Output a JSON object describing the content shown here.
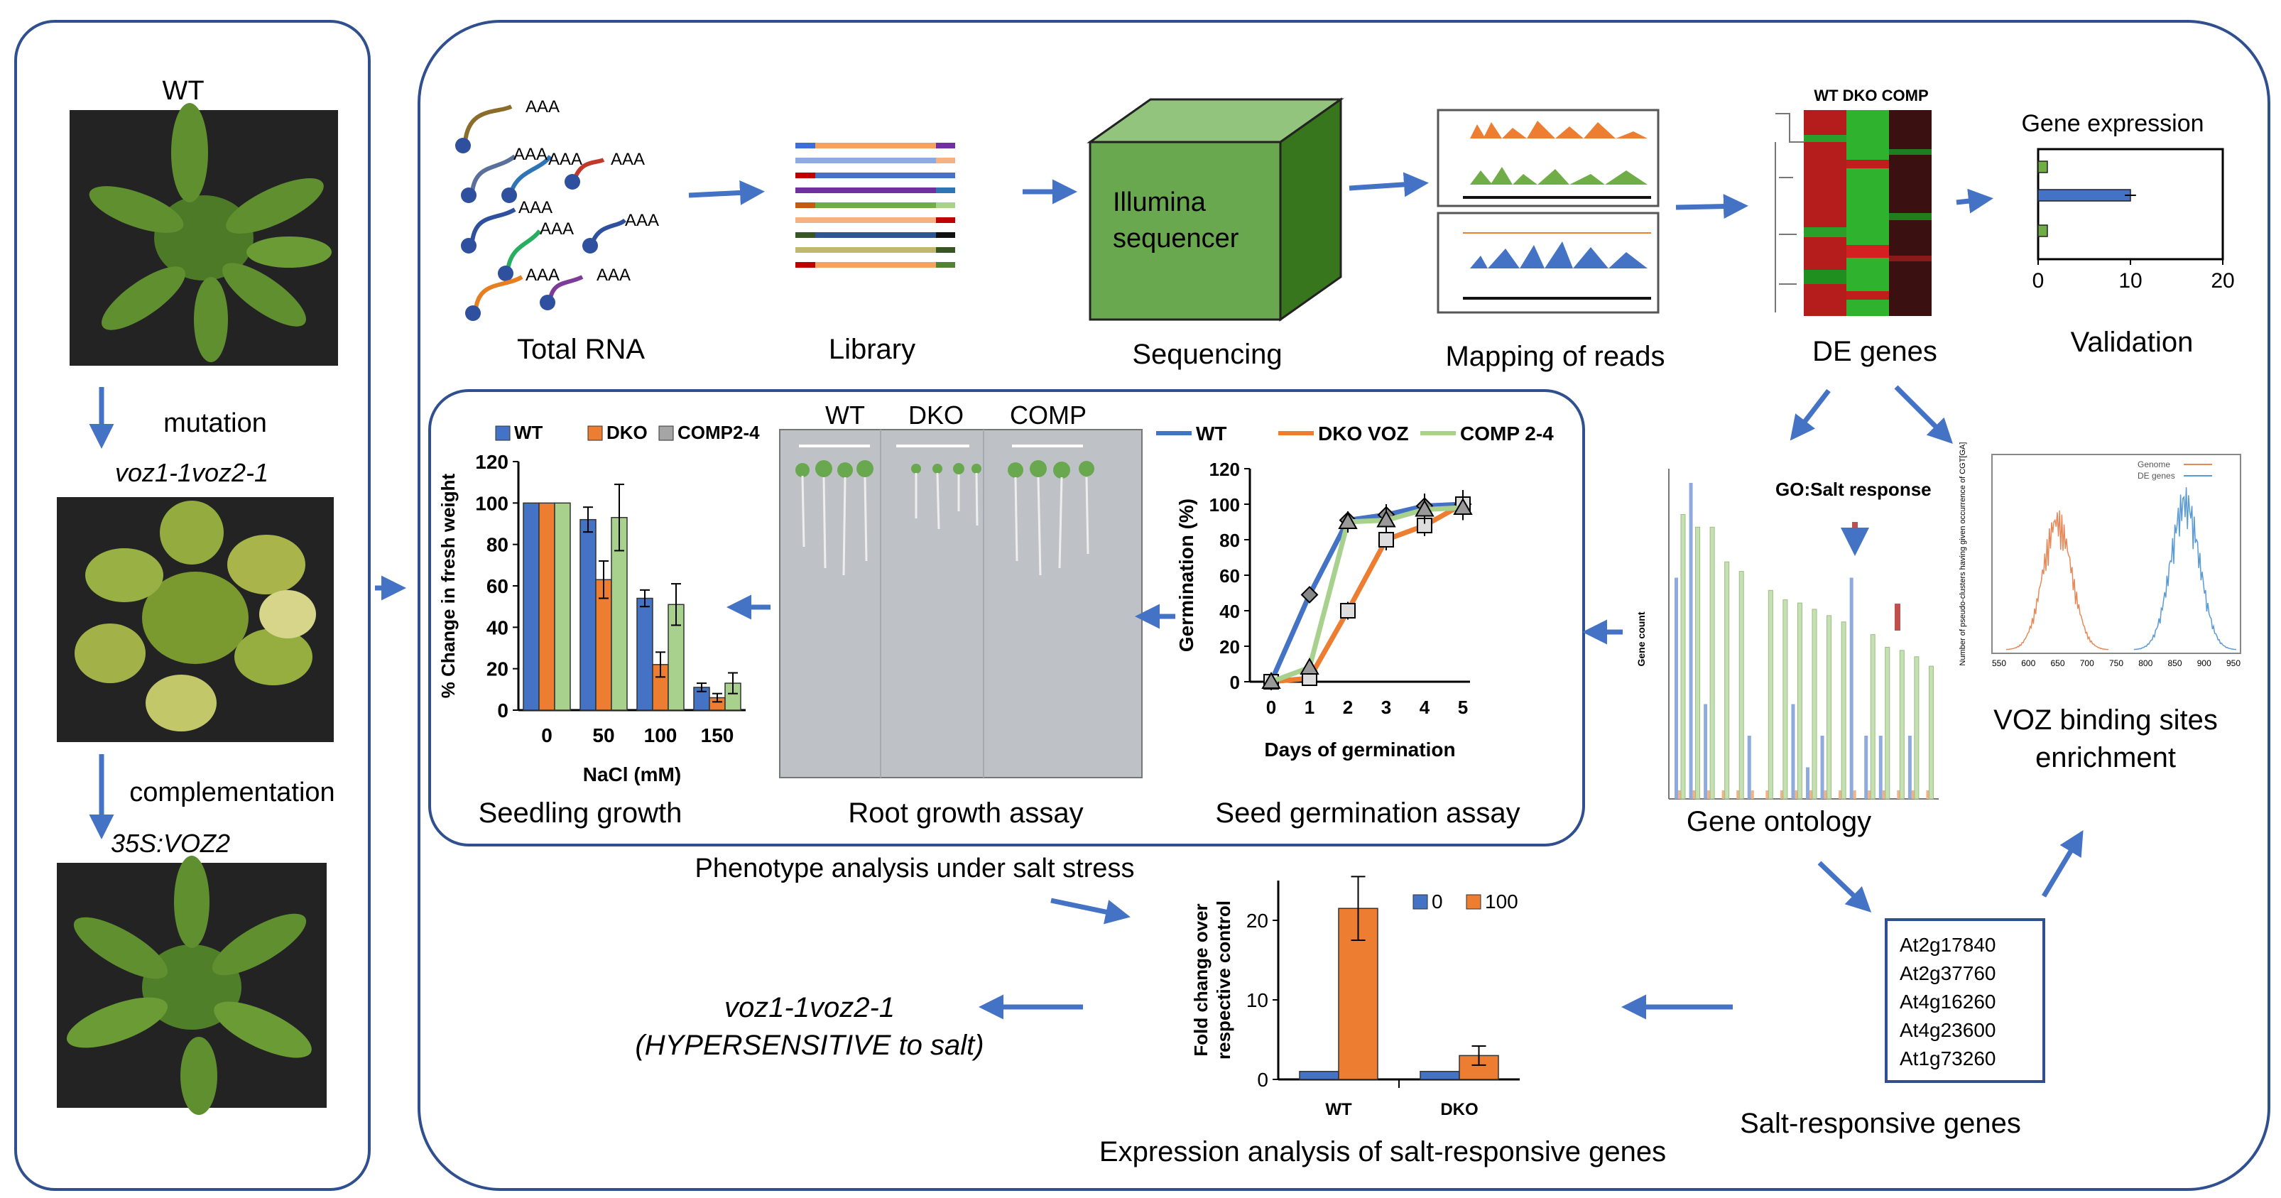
{
  "left_panel": {
    "wt_label": "WT",
    "mutation_label": "mutation",
    "mutant_label": "voz1-1voz2-1",
    "complementation_label": "complementation",
    "comp_label": "35S:VOZ2"
  },
  "pipeline": {
    "total_rna": "Total RNA",
    "library": "Library",
    "sequencing": "Sequencing",
    "mapping": "Mapping of reads",
    "de_genes": "DE genes",
    "validation": "Validation",
    "polyA": "AAA",
    "sequencer_line1": "Illumina",
    "sequencer_line2": "sequencer",
    "heatmap_header": "WT DKO COMP"
  },
  "validation_chart": {
    "title": "Gene expression",
    "ticks": [
      "0",
      "10",
      "20"
    ]
  },
  "phenotype": {
    "seedling_label": "Seedling growth",
    "root_label": "Root growth assay",
    "germination_label": "Seed germination assay",
    "panel_caption": "Phenotype analysis under salt stress",
    "root_photo_labels": [
      "WT",
      "DKO",
      "COMP"
    ]
  },
  "gene_ontology": {
    "label": "Gene ontology",
    "go_label": "GO:Salt response",
    "ylabel": "Gene count"
  },
  "voz_sites": {
    "label_line1": "VOZ binding sites",
    "label_line2": "enrichment",
    "ylabel": "Number of pseudo-clusters having given occurrence of CGT[GA]",
    "legend": [
      "Genome",
      "DE genes"
    ],
    "ticks": [
      "550",
      "600",
      "650",
      "700",
      "750",
      "800",
      "850",
      "900",
      "950"
    ]
  },
  "salt_genes": {
    "label": "Salt-responsive genes",
    "genes": [
      "At2g17840",
      "At2g37760",
      "At4g16260",
      "At4g23600",
      "At1g73260"
    ]
  },
  "expression": {
    "label": "Expression analysis of salt-responsive genes"
  },
  "conclusion": {
    "line1": "voz1-1voz2-1",
    "line2": "(HYPERSENSITIVE to salt)"
  },
  "colors": {
    "border": "#2f4f8f",
    "arrow": "#4472c4",
    "blue": "#4472c4",
    "orange": "#ed7d31",
    "gray": "#a5a5a5",
    "light_green": "#a9d18e",
    "green": "#70ad47"
  },
  "chart_data": [
    {
      "id": "seedling",
      "type": "bar",
      "ylabel": "% Change in fresh weight",
      "xlabel": "NaCl (mM)",
      "categories": [
        "0",
        "50",
        "100",
        "150"
      ],
      "ylim": [
        0,
        120
      ],
      "yticks": [
        0,
        20,
        40,
        60,
        80,
        100,
        120
      ],
      "legend": [
        "WT",
        "DKO",
        "COMP2-4"
      ],
      "series": [
        {
          "name": "WT",
          "values": [
            100,
            92,
            54,
            11
          ],
          "errors": [
            0,
            6,
            4,
            2
          ]
        },
        {
          "name": "DKO",
          "values": [
            100,
            63,
            22,
            6
          ],
          "errors": [
            0,
            9,
            6,
            2
          ]
        },
        {
          "name": "COMP2-4",
          "values": [
            100,
            93,
            51,
            13
          ],
          "errors": [
            0,
            16,
            10,
            5
          ]
        }
      ]
    },
    {
      "id": "germination",
      "type": "line",
      "ylabel": "Germination (%)",
      "xlabel": "Days of germination",
      "x": [
        0,
        1,
        2,
        3,
        4,
        5
      ],
      "ylim": [
        0,
        120
      ],
      "yticks": [
        0,
        20,
        40,
        60,
        80,
        100,
        120
      ],
      "legend": [
        "WT",
        "DKO VOZ",
        "COMP 2-4"
      ],
      "series": [
        {
          "name": "WT",
          "values": [
            0,
            49,
            91,
            94,
            99,
            100
          ],
          "errors": [
            0,
            3,
            5,
            6,
            7,
            6
          ]
        },
        {
          "name": "DKO VOZ",
          "values": [
            0,
            2,
            40,
            80,
            88,
            100
          ],
          "errors": [
            0,
            2,
            5,
            6,
            6,
            8
          ]
        },
        {
          "name": "COMP 2-4",
          "values": [
            0,
            8,
            90,
            91,
            97,
            98
          ],
          "errors": [
            0,
            2,
            6,
            7,
            8,
            7
          ]
        }
      ]
    },
    {
      "id": "expression",
      "type": "bar",
      "ylabel": "Fold change over respective control",
      "categories": [
        "WT",
        "DKO"
      ],
      "ylim": [
        0,
        25
      ],
      "yticks": [
        0,
        10,
        20
      ],
      "legend": [
        "0",
        "100"
      ],
      "series": [
        {
          "name": "0",
          "values": [
            1,
            1
          ],
          "errors": [
            0,
            0
          ]
        },
        {
          "name": "100",
          "values": [
            21.5,
            3
          ],
          "errors": [
            4,
            1.2
          ]
        }
      ]
    },
    {
      "id": "validation",
      "type": "bar",
      "orientation": "horizontal",
      "title": "Gene expression",
      "xlim": [
        0,
        20
      ],
      "xticks": [
        0,
        10,
        20
      ],
      "values": [
        1,
        10,
        1
      ],
      "errors": [
        0,
        0.6,
        0
      ]
    }
  ]
}
